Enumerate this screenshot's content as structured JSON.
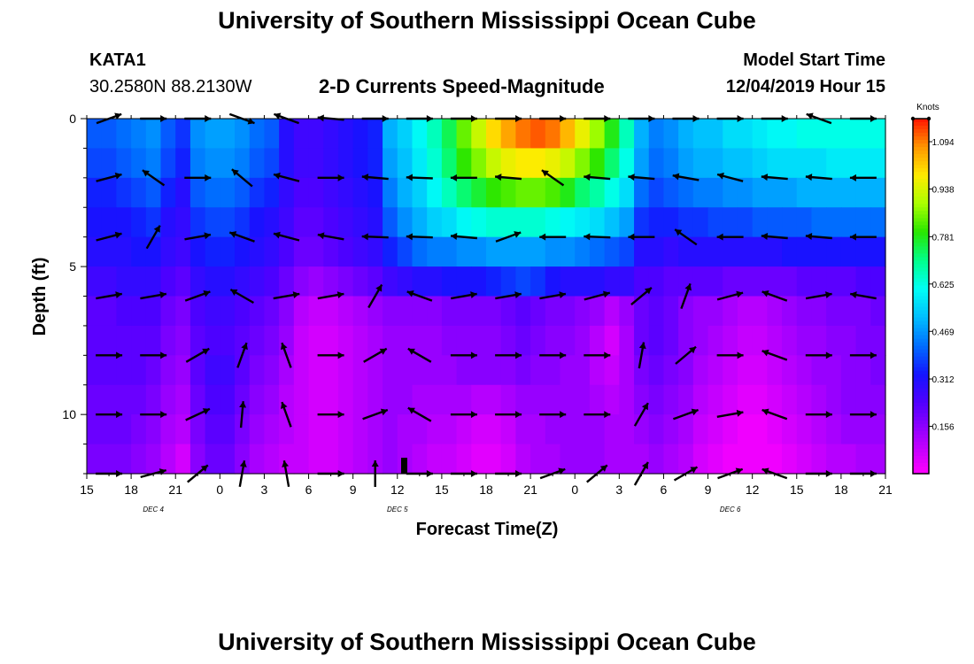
{
  "header": {
    "title_top": "University of Southern Mississippi Ocean Cube",
    "station": "KATA1",
    "coords": "30.2580N 88.2130W",
    "subtitle": "2-D Currents Speed-Magnitude",
    "model_start_label": "Model Start Time",
    "model_start_value": "12/04/2019 Hour 15"
  },
  "footer": {
    "title_bottom": "University of Southern Mississippi Ocean Cube"
  },
  "chart_data": {
    "type": "heatmap",
    "xlabel": "Forecast Time(Z)",
    "ylabel": "Depth (ft)",
    "x_tick_labels": [
      "15",
      "18",
      "21",
      "0",
      "3",
      "6",
      "9",
      "12",
      "15",
      "18",
      "21",
      "0",
      "3",
      "6",
      "9",
      "12",
      "15",
      "18",
      "21"
    ],
    "x_date_labels": [
      {
        "text": "DEC 4",
        "at_hour": 4.5
      },
      {
        "text": "DEC 5",
        "at_hour": 21
      },
      {
        "text": "DEC 6",
        "at_hour": 43.5
      }
    ],
    "y_ticks": [
      0,
      5,
      10
    ],
    "ylim": [
      0,
      12
    ],
    "xlim_hours": [
      0,
      54
    ],
    "colorbar": {
      "unit": "Knots",
      "ticks": [
        "1.094",
        "0.938",
        "0.781",
        "0.625",
        "0.469",
        "0.312",
        "0.156"
      ],
      "range": [
        0,
        1.17
      ]
    },
    "depth_rows": [
      0,
      1,
      2,
      3,
      4,
      5,
      6,
      7,
      8,
      9,
      10,
      11
    ],
    "speed_grid_knots": [
      [
        0.4,
        0.4,
        0.42,
        0.44,
        0.46,
        0.4,
        0.36,
        0.46,
        0.48,
        0.48,
        0.46,
        0.42,
        0.4,
        0.3,
        0.26,
        0.26,
        0.28,
        0.3,
        0.32,
        0.34,
        0.5,
        0.54,
        0.6,
        0.66,
        0.74,
        0.84,
        0.92,
        1.0,
        1.06,
        1.1,
        1.12,
        1.1,
        1.04,
        0.96,
        0.88,
        0.78,
        0.66,
        0.5,
        0.44,
        0.46,
        0.5,
        0.52,
        0.52,
        0.56,
        0.56,
        0.58,
        0.6,
        0.6,
        0.62,
        0.62,
        0.62,
        0.62,
        0.62,
        0.62
      ],
      [
        0.38,
        0.38,
        0.4,
        0.42,
        0.44,
        0.38,
        0.34,
        0.44,
        0.46,
        0.46,
        0.44,
        0.4,
        0.38,
        0.3,
        0.26,
        0.26,
        0.28,
        0.3,
        0.32,
        0.34,
        0.48,
        0.52,
        0.58,
        0.64,
        0.72,
        0.8,
        0.86,
        0.92,
        0.96,
        0.98,
        0.98,
        0.96,
        0.92,
        0.86,
        0.8,
        0.72,
        0.62,
        0.48,
        0.42,
        0.44,
        0.48,
        0.5,
        0.5,
        0.52,
        0.52,
        0.54,
        0.56,
        0.56,
        0.56,
        0.56,
        0.58,
        0.58,
        0.58,
        0.58
      ],
      [
        0.34,
        0.34,
        0.36,
        0.38,
        0.4,
        0.34,
        0.3,
        0.4,
        0.42,
        0.42,
        0.4,
        0.36,
        0.34,
        0.28,
        0.24,
        0.24,
        0.26,
        0.28,
        0.3,
        0.32,
        0.44,
        0.5,
        0.54,
        0.6,
        0.66,
        0.72,
        0.76,
        0.8,
        0.82,
        0.84,
        0.84,
        0.82,
        0.78,
        0.72,
        0.68,
        0.62,
        0.56,
        0.42,
        0.38,
        0.4,
        0.42,
        0.44,
        0.44,
        0.46,
        0.46,
        0.48,
        0.48,
        0.48,
        0.5,
        0.5,
        0.5,
        0.5,
        0.5,
        0.5
      ],
      [
        0.32,
        0.32,
        0.32,
        0.34,
        0.36,
        0.3,
        0.28,
        0.36,
        0.38,
        0.38,
        0.36,
        0.32,
        0.3,
        0.26,
        0.22,
        0.22,
        0.24,
        0.26,
        0.28,
        0.3,
        0.4,
        0.46,
        0.5,
        0.54,
        0.56,
        0.6,
        0.62,
        0.64,
        0.64,
        0.64,
        0.64,
        0.62,
        0.6,
        0.58,
        0.56,
        0.52,
        0.48,
        0.36,
        0.34,
        0.34,
        0.36,
        0.36,
        0.38,
        0.38,
        0.38,
        0.4,
        0.4,
        0.4,
        0.4,
        0.42,
        0.42,
        0.42,
        0.42,
        0.42
      ],
      [
        0.3,
        0.3,
        0.3,
        0.32,
        0.32,
        0.28,
        0.26,
        0.32,
        0.34,
        0.34,
        0.32,
        0.3,
        0.28,
        0.24,
        0.2,
        0.2,
        0.22,
        0.24,
        0.26,
        0.28,
        0.34,
        0.38,
        0.42,
        0.44,
        0.44,
        0.46,
        0.46,
        0.48,
        0.48,
        0.48,
        0.48,
        0.46,
        0.46,
        0.44,
        0.42,
        0.4,
        0.38,
        0.3,
        0.3,
        0.28,
        0.3,
        0.3,
        0.3,
        0.3,
        0.3,
        0.3,
        0.3,
        0.32,
        0.32,
        0.32,
        0.32,
        0.32,
        0.32,
        0.32
      ],
      [
        0.26,
        0.26,
        0.28,
        0.28,
        0.28,
        0.24,
        0.22,
        0.28,
        0.3,
        0.3,
        0.28,
        0.26,
        0.24,
        0.2,
        0.16,
        0.14,
        0.16,
        0.18,
        0.2,
        0.22,
        0.26,
        0.28,
        0.3,
        0.3,
        0.32,
        0.32,
        0.32,
        0.34,
        0.36,
        0.38,
        0.36,
        0.32,
        0.3,
        0.3,
        0.3,
        0.28,
        0.28,
        0.24,
        0.24,
        0.22,
        0.22,
        0.22,
        0.22,
        0.2,
        0.2,
        0.2,
        0.2,
        0.2,
        0.22,
        0.22,
        0.22,
        0.22,
        0.24,
        0.24
      ],
      [
        0.22,
        0.22,
        0.24,
        0.24,
        0.24,
        0.2,
        0.18,
        0.24,
        0.26,
        0.26,
        0.24,
        0.22,
        0.2,
        0.16,
        0.1,
        0.08,
        0.08,
        0.1,
        0.12,
        0.14,
        0.16,
        0.16,
        0.16,
        0.16,
        0.18,
        0.18,
        0.18,
        0.18,
        0.2,
        0.22,
        0.2,
        0.18,
        0.18,
        0.16,
        0.14,
        0.1,
        0.14,
        0.2,
        0.22,
        0.2,
        0.16,
        0.14,
        0.14,
        0.12,
        0.1,
        0.1,
        0.12,
        0.14,
        0.16,
        0.16,
        0.18,
        0.18,
        0.18,
        0.2
      ],
      [
        0.22,
        0.22,
        0.22,
        0.22,
        0.22,
        0.18,
        0.16,
        0.22,
        0.24,
        0.24,
        0.22,
        0.2,
        0.18,
        0.14,
        0.08,
        0.06,
        0.06,
        0.08,
        0.1,
        0.12,
        0.14,
        0.14,
        0.14,
        0.14,
        0.16,
        0.16,
        0.16,
        0.16,
        0.18,
        0.2,
        0.18,
        0.16,
        0.16,
        0.14,
        0.1,
        0.06,
        0.12,
        0.2,
        0.22,
        0.2,
        0.16,
        0.14,
        0.12,
        0.1,
        0.08,
        0.08,
        0.1,
        0.12,
        0.14,
        0.14,
        0.16,
        0.16,
        0.18,
        0.18
      ],
      [
        0.22,
        0.22,
        0.22,
        0.22,
        0.2,
        0.16,
        0.14,
        0.22,
        0.26,
        0.26,
        0.22,
        0.18,
        0.16,
        0.12,
        0.08,
        0.06,
        0.06,
        0.08,
        0.1,
        0.12,
        0.14,
        0.14,
        0.14,
        0.14,
        0.14,
        0.16,
        0.16,
        0.16,
        0.16,
        0.18,
        0.16,
        0.16,
        0.14,
        0.14,
        0.1,
        0.08,
        0.12,
        0.18,
        0.2,
        0.18,
        0.16,
        0.12,
        0.1,
        0.08,
        0.06,
        0.06,
        0.08,
        0.1,
        0.12,
        0.14,
        0.14,
        0.16,
        0.16,
        0.18
      ],
      [
        0.2,
        0.2,
        0.2,
        0.2,
        0.18,
        0.14,
        0.12,
        0.2,
        0.24,
        0.24,
        0.2,
        0.16,
        0.14,
        0.1,
        0.08,
        0.06,
        0.06,
        0.08,
        0.1,
        0.12,
        0.14,
        0.14,
        0.12,
        0.12,
        0.12,
        0.12,
        0.1,
        0.1,
        0.12,
        0.14,
        0.14,
        0.14,
        0.14,
        0.14,
        0.12,
        0.1,
        0.12,
        0.16,
        0.18,
        0.16,
        0.14,
        0.1,
        0.08,
        0.06,
        0.04,
        0.04,
        0.06,
        0.08,
        0.1,
        0.12,
        0.14,
        0.16,
        0.16,
        0.16
      ],
      [
        0.2,
        0.2,
        0.2,
        0.18,
        0.16,
        0.12,
        0.1,
        0.18,
        0.22,
        0.22,
        0.18,
        0.14,
        0.12,
        0.1,
        0.08,
        0.06,
        0.06,
        0.08,
        0.1,
        0.12,
        0.14,
        0.12,
        0.12,
        0.1,
        0.1,
        0.08,
        0.06,
        0.06,
        0.08,
        0.12,
        0.12,
        0.14,
        0.14,
        0.14,
        0.14,
        0.12,
        0.12,
        0.14,
        0.16,
        0.14,
        0.12,
        0.08,
        0.06,
        0.04,
        0.02,
        0.02,
        0.04,
        0.06,
        0.08,
        0.1,
        0.12,
        0.14,
        0.14,
        0.14
      ],
      [
        0.18,
        0.18,
        0.18,
        0.16,
        0.14,
        0.1,
        0.06,
        0.16,
        0.2,
        0.2,
        0.16,
        0.12,
        0.1,
        0.08,
        0.08,
        0.06,
        0.06,
        0.08,
        0.1,
        0.12,
        0.14,
        0.12,
        0.1,
        0.08,
        0.08,
        0.06,
        0.04,
        0.04,
        0.06,
        0.1,
        0.12,
        0.12,
        0.14,
        0.14,
        0.14,
        0.12,
        0.12,
        0.12,
        0.14,
        0.12,
        0.1,
        0.06,
        0.04,
        0.02,
        0.02,
        0.02,
        0.02,
        0.04,
        0.06,
        0.08,
        0.1,
        0.1,
        0.12,
        0.12
      ]
    ],
    "vector_depths_ft": [
      0,
      2,
      4,
      6,
      8,
      10,
      12
    ],
    "vector_hours": [
      1.5,
      4.5,
      7.5,
      10.5,
      13.5,
      16.5,
      19.5,
      22.5,
      25.5,
      28.5,
      31.5,
      34.5,
      37.5,
      40.5,
      43.5,
      46.5,
      49.5,
      52.5
    ],
    "vector_directions_deg": [
      [
        20,
        0,
        0,
        -20,
        160,
        175,
        0,
        0,
        0,
        0,
        0,
        0,
        0,
        0,
        0,
        0,
        160,
        0
      ],
      [
        15,
        145,
        0,
        140,
        165,
        0,
        175,
        178,
        180,
        175,
        145,
        175,
        175,
        170,
        165,
        175,
        175,
        180
      ],
      [
        15,
        60,
        10,
        160,
        165,
        170,
        178,
        178,
        175,
        20,
        180,
        178,
        180,
        145,
        180,
        175,
        175,
        180
      ],
      [
        10,
        10,
        20,
        150,
        10,
        10,
        60,
        160,
        10,
        10,
        10,
        15,
        40,
        70,
        15,
        160,
        10,
        170
      ],
      [
        0,
        0,
        30,
        70,
        110,
        0,
        30,
        150,
        0,
        0,
        0,
        0,
        80,
        40,
        0,
        160,
        0,
        0
      ],
      [
        0,
        0,
        25,
        85,
        110,
        0,
        20,
        150,
        0,
        0,
        0,
        0,
        60,
        20,
        10,
        160,
        0,
        0
      ],
      [
        0,
        15,
        40,
        80,
        100,
        0,
        90,
        0,
        0,
        0,
        20,
        40,
        60,
        30,
        20,
        160,
        0,
        0
      ]
    ]
  }
}
